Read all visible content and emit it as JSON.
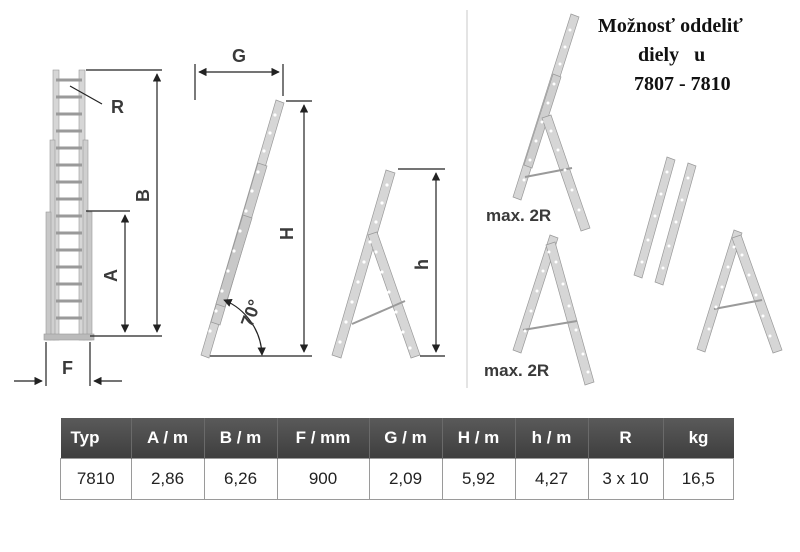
{
  "note": {
    "line1": "Možnosť oddeliť",
    "line2": "diely   u",
    "line3": "7807 - 7810"
  },
  "labels": {
    "r": "R",
    "b": "B",
    "a": "A",
    "f": "F",
    "g": "G",
    "h_upper": "H",
    "angle": "70°",
    "h_lower": "h",
    "max_top": "max. 2R",
    "max_bottom": "max. 2R"
  },
  "colors": {
    "ladder_fill": "#d4d4d4",
    "ladder_stroke": "#9a9a9a",
    "dimension_line": "#222222",
    "header_bg": "#4a4a4a",
    "header_text": "#ffffff"
  },
  "table": {
    "headers": [
      "Typ",
      "A / m",
      "B / m",
      "F / mm",
      "G / m",
      "H / m",
      "h / m",
      "R",
      "kg"
    ],
    "row": [
      "7810",
      "2,86",
      "6,26",
      "900",
      "2,09",
      "5,92",
      "4,27",
      "3 x 10",
      "16,5"
    ]
  }
}
